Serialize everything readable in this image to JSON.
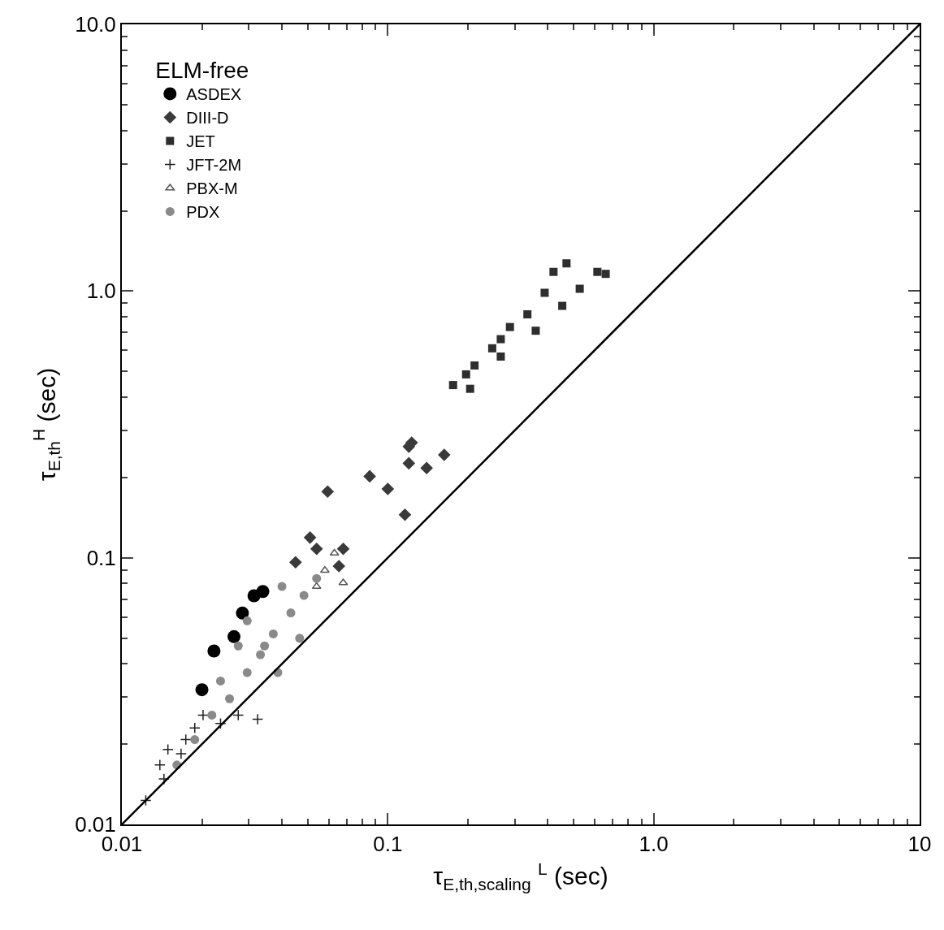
{
  "chart_data": {
    "type": "scatter",
    "xlabel": "τ$_{E,th,scaling}$ $^{L}$ (sec)",
    "ylabel": "τ$_{E,th}$$^{H}$ (sec)",
    "legend_title": "ELM-free",
    "legend": "top left",
    "log": "xy",
    "xlim": [
      0.01,
      10
    ],
    "ylim": [
      0.01,
      10
    ],
    "xticks": [
      0.01,
      0.1,
      {
        "value": 1,
        "label": "1.0"
      },
      10
    ],
    "yticks": [
      0.01,
      0.1,
      {
        "value": 1,
        "label": "1.0"
      },
      {
        "value": 10,
        "label": "10.0"
      }
    ],
    "series": [
      {
        "name": "ASDEX",
        "color": "#000000",
        "marker": "circle",
        "x": [
          0.02,
          0.0222,
          0.0264,
          0.0284,
          0.0314,
          0.0339
        ],
        "values": [
          0.032,
          0.0447,
          0.0506,
          0.062,
          0.072,
          0.0747
        ]
      },
      {
        "name": "DIII-D",
        "color": "#3a3a3a",
        "marker": "diamond",
        "x": [
          0.045,
          0.051,
          0.054,
          0.0594,
          0.0655,
          0.068,
          0.0855,
          0.1,
          0.116,
          0.12,
          0.12,
          0.123,
          0.14,
          0.163
        ],
        "values": [
          0.0962,
          0.119,
          0.108,
          0.177,
          0.093,
          0.108,
          0.202,
          0.181,
          0.145,
          0.261,
          0.226,
          0.27,
          0.217,
          0.243
        ]
      },
      {
        "name": "JET",
        "color": "#2e2e2e",
        "marker": "square",
        "x": [
          0.176,
          0.197,
          0.204,
          0.212,
          0.247,
          0.266,
          0.266,
          0.288,
          0.335,
          0.36,
          0.389,
          0.42,
          0.453,
          0.47,
          0.527,
          0.614,
          0.66
        ],
        "values": [
          0.444,
          0.487,
          0.43,
          0.526,
          0.61,
          0.66,
          0.568,
          0.733,
          0.818,
          0.71,
          0.985,
          1.18,
          0.88,
          1.27,
          1.02,
          1.18,
          1.16
        ]
      },
      {
        "name": "JFT-2M",
        "color": "#222222",
        "marker": "cross",
        "x": [
          0.0123,
          0.0139,
          0.0144,
          0.0149,
          0.0167,
          0.0174,
          0.0188,
          0.0202,
          0.0235,
          0.0274,
          0.0324
        ],
        "values": [
          0.0123,
          0.0167,
          0.0148,
          0.0191,
          0.0184,
          0.0208,
          0.023,
          0.0257,
          0.0239,
          0.0257,
          0.0248
        ]
      },
      {
        "name": "PBX-M",
        "color": "#555555",
        "marker": "triangle",
        "x": [
          0.054,
          0.058,
          0.063,
          0.068
        ],
        "values": [
          0.078,
          0.0897,
          0.104,
          0.0806
        ]
      },
      {
        "name": "PDX",
        "color": "#8a8a8a",
        "marker": "circle",
        "x": [
          0.0161,
          0.0188,
          0.0218,
          0.0235,
          0.0254,
          0.0274,
          0.0296,
          0.0296,
          0.0332,
          0.0344,
          0.0371,
          0.0386,
          0.04,
          0.0432,
          0.0466,
          0.0484,
          0.054
        ],
        "values": [
          0.0167,
          0.0208,
          0.0257,
          0.0345,
          0.0296,
          0.0467,
          0.0371,
          0.058,
          0.0433,
          0.0467,
          0.0518,
          0.0371,
          0.078,
          0.0621,
          0.0499,
          0.0722,
          0.0836
        ]
      },
      {
        "type": "line",
        "color": "#000000",
        "line_style": "solid",
        "marker": "none",
        "x": [
          0.01,
          10
        ],
        "values": [
          0.01,
          10
        ]
      }
    ]
  }
}
